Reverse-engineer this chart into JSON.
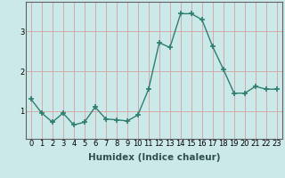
{
  "x": [
    0,
    1,
    2,
    3,
    4,
    5,
    6,
    7,
    8,
    9,
    10,
    11,
    12,
    13,
    14,
    15,
    16,
    17,
    18,
    19,
    20,
    21,
    22,
    23
  ],
  "y": [
    1.3,
    0.95,
    0.72,
    0.95,
    0.65,
    0.72,
    1.1,
    0.8,
    0.78,
    0.75,
    0.9,
    1.55,
    2.72,
    2.6,
    3.45,
    3.45,
    3.3,
    2.62,
    2.05,
    1.45,
    1.45,
    1.62,
    1.55,
    1.55
  ],
  "xlabel": "Humidex (Indice chaleur)",
  "xlim": [
    -0.5,
    23.5
  ],
  "ylim": [
    0.3,
    3.75
  ],
  "yticks": [
    1,
    2,
    3
  ],
  "bg_color": "#cce9e9",
  "grid_color": "#d4a0a0",
  "line_color": "#2e7d6e",
  "marker": "+",
  "marker_size": 5,
  "marker_lw": 1.2,
  "line_width": 1.0,
  "xlabel_fontsize": 7.5,
  "tick_fontsize": 6.0,
  "spine_color": "#606060"
}
